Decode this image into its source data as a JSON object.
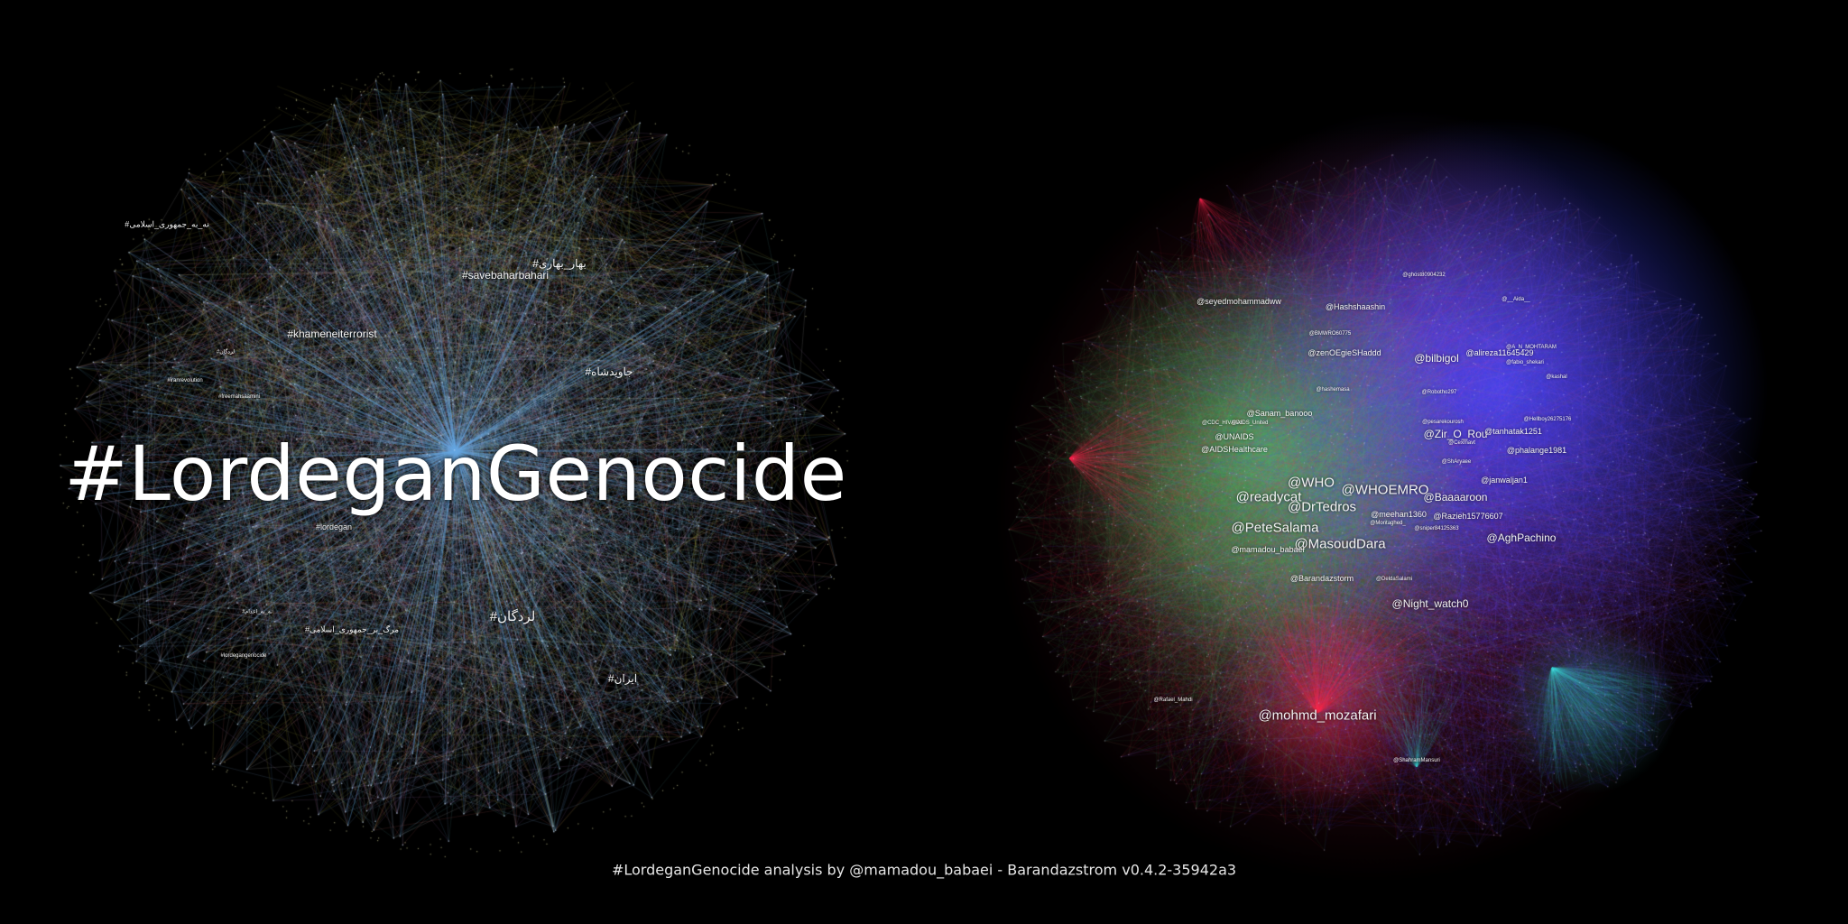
{
  "left_graph": {
    "title": "#LordeganGenocide",
    "labels": [
      {
        "text": "#savebaharbahari",
        "size": "medium"
      },
      {
        "text": "#بهار_بهاری",
        "size": "medium"
      },
      {
        "text": "#khameneiterrorist",
        "size": "medium"
      },
      {
        "text": "#جاویدشاه",
        "size": "medium"
      },
      {
        "text": "#لردگان",
        "size": "large"
      },
      {
        "text": "#ایران",
        "size": "medium"
      },
      {
        "text": "#مرگ_بر_جمهوری_اسلامی",
        "size": "small"
      },
      {
        "text": "#نه_به_جمهوری_اسلامی",
        "size": "small"
      },
      {
        "text": "#lordegan",
        "size": "small"
      },
      {
        "text": "#iranrevolution",
        "size": "tiny"
      },
      {
        "text": "#freemahsaamini",
        "size": "tiny"
      },
      {
        "text": "#لردگان",
        "size": "tiny"
      },
      {
        "text": "#lordegangenocide",
        "size": "tiny"
      },
      {
        "text": "#نه_به_اعدام",
        "size": "tiny"
      }
    ],
    "edge_colors": [
      "#6aa8e0",
      "#8fc0f0",
      "#c8c24a",
      "#b07cc6",
      "#d9d9d9",
      "#5fb0b0",
      "#d06a6a"
    ]
  },
  "right_graph": {
    "labels": [
      {
        "text": "@seyedmohammadww",
        "size": "small"
      },
      {
        "text": "@Hashshaashin",
        "size": "small"
      },
      {
        "text": "@zenOEgieSHaddd",
        "size": "small"
      },
      {
        "text": "@bilbigol",
        "size": "medium"
      },
      {
        "text": "@alireza11645429",
        "size": "small"
      },
      {
        "text": "@Sanam_banooo",
        "size": "small"
      },
      {
        "text": "@UNAIDS",
        "size": "small"
      },
      {
        "text": "@CDC_HIVAIDS",
        "size": "tiny"
      },
      {
        "text": "@pesarekourosh",
        "size": "tiny"
      },
      {
        "text": "@Zir_O_Rou",
        "size": "medium"
      },
      {
        "text": "@tanhatak1251",
        "size": "small"
      },
      {
        "text": "@phalange1981",
        "size": "small"
      },
      {
        "text": "@AIDSHealthcare",
        "size": "small"
      },
      {
        "text": "@ShAryaee",
        "size": "tiny"
      },
      {
        "text": "@WHO",
        "size": "large"
      },
      {
        "text": "@WHOEMRO",
        "size": "large"
      },
      {
        "text": "@readycat",
        "size": "large"
      },
      {
        "text": "@Baaaaroon",
        "size": "medium"
      },
      {
        "text": "@janwaljan1",
        "size": "small"
      },
      {
        "text": "@DrTedros",
        "size": "large"
      },
      {
        "text": "@meehan1360",
        "size": "small"
      },
      {
        "text": "@Razieh15776607",
        "size": "small"
      },
      {
        "text": "@PeteSalama",
        "size": "large"
      },
      {
        "text": "@MasoudDara",
        "size": "large"
      },
      {
        "text": "@AghPachino",
        "size": "medium"
      },
      {
        "text": "@mamadou_babaei",
        "size": "small"
      },
      {
        "text": "@Barandazstorm",
        "size": "small"
      },
      {
        "text": "@DeldaSalami",
        "size": "tiny"
      },
      {
        "text": "@Night_watch0",
        "size": "medium"
      },
      {
        "text": "@mohmd_mozafari",
        "size": "large"
      },
      {
        "text": "@hashemasa",
        "size": "tiny"
      },
      {
        "text": "@BMWRO60775",
        "size": "tiny"
      },
      {
        "text": "@__Aida__",
        "size": "tiny"
      },
      {
        "text": "@kashal",
        "size": "tiny"
      },
      {
        "text": "@Hellboy26275176",
        "size": "tiny"
      },
      {
        "text": "@ghost80904232",
        "size": "tiny"
      },
      {
        "text": "@A_N_MOHTARAM",
        "size": "tiny"
      },
      {
        "text": "@Rafael_Mahdi",
        "size": "tiny"
      },
      {
        "text": "@ShahramMansuri",
        "size": "tiny"
      },
      {
        "text": "@AIDS_United",
        "size": "tiny"
      },
      {
        "text": "@fabio_shekari",
        "size": "tiny"
      },
      {
        "text": "@Montaghed_",
        "size": "tiny"
      },
      {
        "text": "@sniper84125363",
        "size": "tiny"
      },
      {
        "text": "@Cexmavt",
        "size": "tiny"
      },
      {
        "text": "@Robotho297",
        "size": "tiny"
      }
    ],
    "cluster_colors": {
      "blue": "#3b45ff",
      "green": "#4fd06a",
      "red": "#ff2a55",
      "cyan": "#3ad4d4",
      "violet": "#9a5cff"
    }
  },
  "footer": {
    "text": "#LordeganGenocide analysis by @mamadou_babaei - Barandazstrom v0.4.2-35942a3"
  }
}
